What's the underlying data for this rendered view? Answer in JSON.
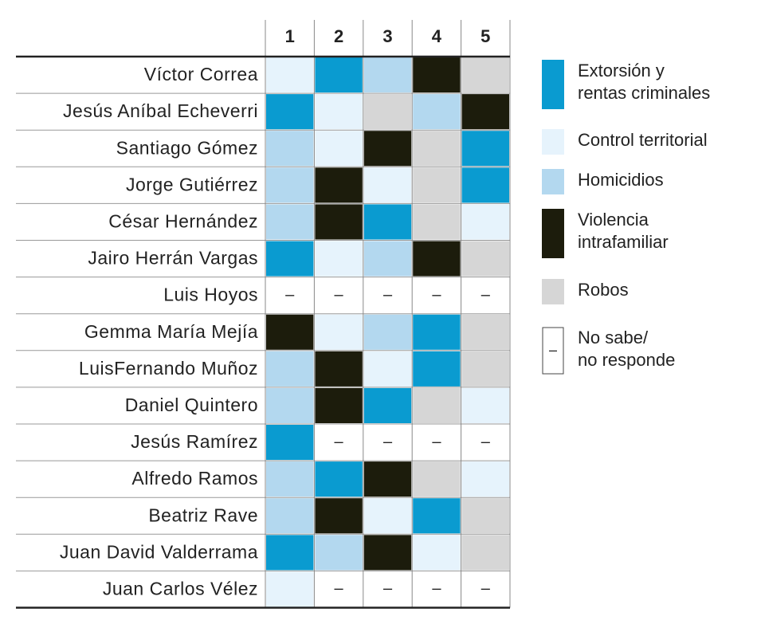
{
  "table": {
    "columns": [
      "1",
      "2",
      "3",
      "4",
      "5"
    ],
    "rows": [
      {
        "name": "Víctor Correa",
        "cells": [
          "#e6f3fc",
          "#0a9bd0",
          "#b3d8ef",
          "#1c1c0c",
          "#d6d6d6"
        ]
      },
      {
        "name": "Jesús Aníbal Echeverri",
        "cells": [
          "#0a9bd0",
          "#e6f3fc",
          "#d6d6d6",
          "#b3d8ef",
          "#1c1c0c"
        ]
      },
      {
        "name": "Santiago Gómez",
        "cells": [
          "#b3d8ef",
          "#e6f3fc",
          "#1c1c0c",
          "#d6d6d6",
          "#0a9bd0"
        ]
      },
      {
        "name": "Jorge Gutiérrez",
        "cells": [
          "#b3d8ef",
          "#1c1c0c",
          "#e6f3fc",
          "#d6d6d6",
          "#0a9bd0"
        ]
      },
      {
        "name": "César Hernández",
        "cells": [
          "#b3d8ef",
          "#1c1c0c",
          "#0a9bd0",
          "#d6d6d6",
          "#e6f3fc"
        ]
      },
      {
        "name": "Jairo Herrán Vargas",
        "cells": [
          "#0a9bd0",
          "#e6f3fc",
          "#b3d8ef",
          "#1c1c0c",
          "#d6d6d6"
        ]
      },
      {
        "name": "Luis Hoyos",
        "cells": [
          "–",
          "–",
          "–",
          "–",
          "–"
        ]
      },
      {
        "name": "Gemma María Mejía",
        "cells": [
          "#1c1c0c",
          "#e6f3fc",
          "#b3d8ef",
          "#0a9bd0",
          "#d6d6d6"
        ]
      },
      {
        "name": "LuisFernando Muñoz",
        "cells": [
          "#b3d8ef",
          "#1c1c0c",
          "#e6f3fc",
          "#0a9bd0",
          "#d6d6d6"
        ]
      },
      {
        "name": "Daniel Quintero",
        "cells": [
          "#b3d8ef",
          "#1c1c0c",
          "#0a9bd0",
          "#d6d6d6",
          "#e6f3fc"
        ]
      },
      {
        "name": "Jesús Ramírez",
        "cells": [
          "#0a9bd0",
          "–",
          "–",
          "–",
          "–"
        ]
      },
      {
        "name": "Alfredo Ramos",
        "cells": [
          "#b3d8ef",
          "#0a9bd0",
          "#1c1c0c",
          "#d6d6d6",
          "#e6f3fc"
        ]
      },
      {
        "name": "Beatriz Rave",
        "cells": [
          "#b3d8ef",
          "#1c1c0c",
          "#e6f3fc",
          "#0a9bd0",
          "#d6d6d6"
        ]
      },
      {
        "name": "Juan David Valderrama",
        "cells": [
          "#0a9bd0",
          "#b3d8ef",
          "#1c1c0c",
          "#e6f3fc",
          "#d6d6d6"
        ]
      },
      {
        "name": "Juan Carlos Vélez",
        "cells": [
          "#e6f3fc",
          "–",
          "–",
          "–",
          "–"
        ]
      }
    ]
  },
  "legend": [
    {
      "label": [
        "Extorsión y",
        "rentas criminales"
      ],
      "color": "#0a9bd0"
    },
    {
      "label": [
        "Control territorial"
      ],
      "color": "#e6f3fc"
    },
    {
      "label": [
        "Homicidios"
      ],
      "color": "#b3d8ef"
    },
    {
      "label": [
        "Violencia",
        "intrafamiliar"
      ],
      "color": "#1c1c0c"
    },
    {
      "label": [
        "Robos"
      ],
      "color": "#d6d6d6"
    },
    {
      "label": [
        "No sabe/",
        "no responde"
      ],
      "symbol": "–"
    }
  ]
}
